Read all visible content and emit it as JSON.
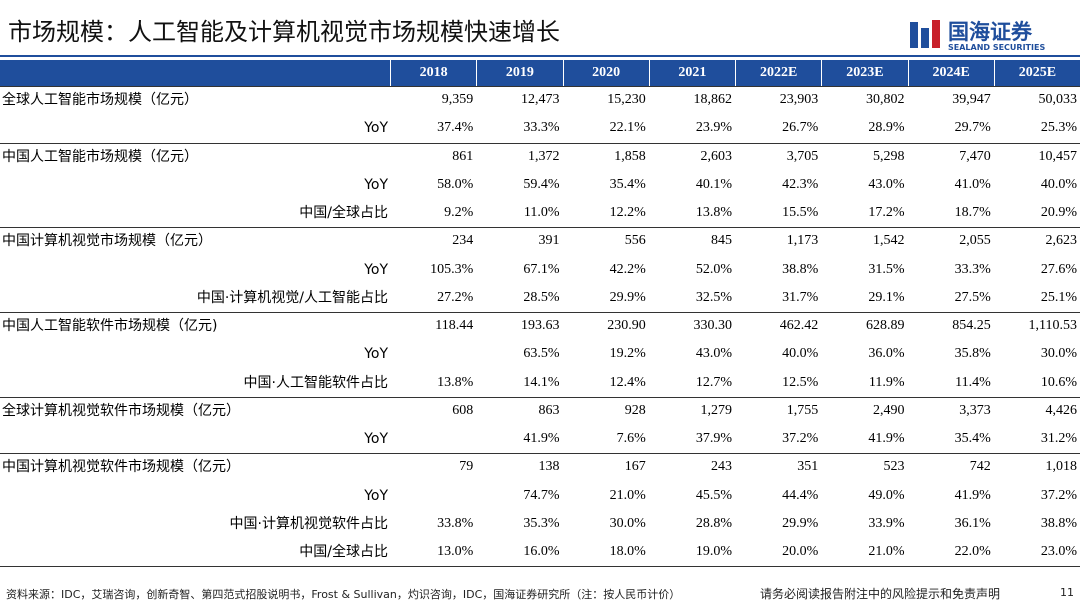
{
  "header": {
    "title": "市场规模：人工智能及计算机视觉市场规模快速增长",
    "logo_name": "国海证券",
    "logo_en": "SEALAND SECURITIES"
  },
  "table": {
    "columns": [
      "2018",
      "2019",
      "2020",
      "2021",
      "2022E",
      "2023E",
      "2024E",
      "2025E"
    ],
    "groups": [
      {
        "rows": [
          [
            "全球人工智能市场规模（亿元）",
            "9,359",
            "12,473",
            "15,230",
            "18,862",
            "23,903",
            "30,802",
            "39,947",
            "50,033"
          ],
          [
            "YoY",
            "37.4%",
            "33.3%",
            "22.1%",
            "23.9%",
            "26.7%",
            "28.9%",
            "29.7%",
            "25.3%"
          ]
        ]
      },
      {
        "rows": [
          [
            "中国人工智能市场规模（亿元）",
            "861",
            "1,372",
            "1,858",
            "2,603",
            "3,705",
            "5,298",
            "7,470",
            "10,457"
          ],
          [
            "YoY",
            "58.0%",
            "59.4%",
            "35.4%",
            "40.1%",
            "42.3%",
            "43.0%",
            "41.0%",
            "40.0%"
          ],
          [
            "中国/全球占比",
            "9.2%",
            "11.0%",
            "12.2%",
            "13.8%",
            "15.5%",
            "17.2%",
            "18.7%",
            "20.9%"
          ]
        ]
      },
      {
        "rows": [
          [
            "中国计算机视觉市场规模（亿元）",
            "234",
            "391",
            "556",
            "845",
            "1,173",
            "1,542",
            "2,055",
            "2,623"
          ],
          [
            "YoY",
            "105.3%",
            "67.1%",
            "42.2%",
            "52.0%",
            "38.8%",
            "31.5%",
            "33.3%",
            "27.6%"
          ],
          [
            "中国·计算机视觉/人工智能占比",
            "27.2%",
            "28.5%",
            "29.9%",
            "32.5%",
            "31.7%",
            "29.1%",
            "27.5%",
            "25.1%"
          ]
        ]
      },
      {
        "rows": [
          [
            "中国人工智能软件市场规模（亿元)",
            "118.44",
            "193.63",
            "230.90",
            "330.30",
            "462.42",
            "628.89",
            "854.25",
            "1,110.53"
          ],
          [
            "YoY",
            null,
            "63.5%",
            "19.2%",
            "43.0%",
            "40.0%",
            "36.0%",
            "35.8%",
            "30.0%"
          ],
          [
            "中国·人工智能软件占比",
            "13.8%",
            "14.1%",
            "12.4%",
            "12.7%",
            "12.5%",
            "11.9%",
            "11.4%",
            "10.6%"
          ]
        ]
      },
      {
        "rows": [
          [
            "全球计算机视觉软件市场规模（亿元）",
            "608",
            "863",
            "928",
            "1,279",
            "1,755",
            "2,490",
            "3,373",
            "4,426"
          ],
          [
            "YoY",
            null,
            "41.9%",
            "7.6%",
            "37.9%",
            "37.2%",
            "41.9%",
            "35.4%",
            "31.2%"
          ]
        ]
      },
      {
        "rows": [
          [
            "中国计算机视觉软件市场规模（亿元）",
            "79",
            "138",
            "167",
            "243",
            "351",
            "523",
            "742",
            "1,018"
          ],
          [
            "YoY",
            null,
            "74.7%",
            "21.0%",
            "45.5%",
            "44.4%",
            "49.0%",
            "41.9%",
            "37.2%"
          ],
          [
            "中国·计算机视觉软件占比",
            "33.8%",
            "35.3%",
            "30.0%",
            "28.8%",
            "29.9%",
            "33.9%",
            "36.1%",
            "38.8%"
          ],
          [
            "中国/全球占比",
            "13.0%",
            "16.0%",
            "18.0%",
            "19.0%",
            "20.0%",
            "21.0%",
            "22.0%",
            "23.0%"
          ]
        ]
      }
    ]
  },
  "footer": {
    "source": "资料来源：IDC，艾瑞咨询，创新奇智、第四范式招股说明书，Frost & Sullivan，灼识咨询，IDC，国海证券研究所（注：按人民币计价）",
    "disclaimer": "请务必阅读报告附注中的风险提示和免责声明",
    "page": "11"
  }
}
